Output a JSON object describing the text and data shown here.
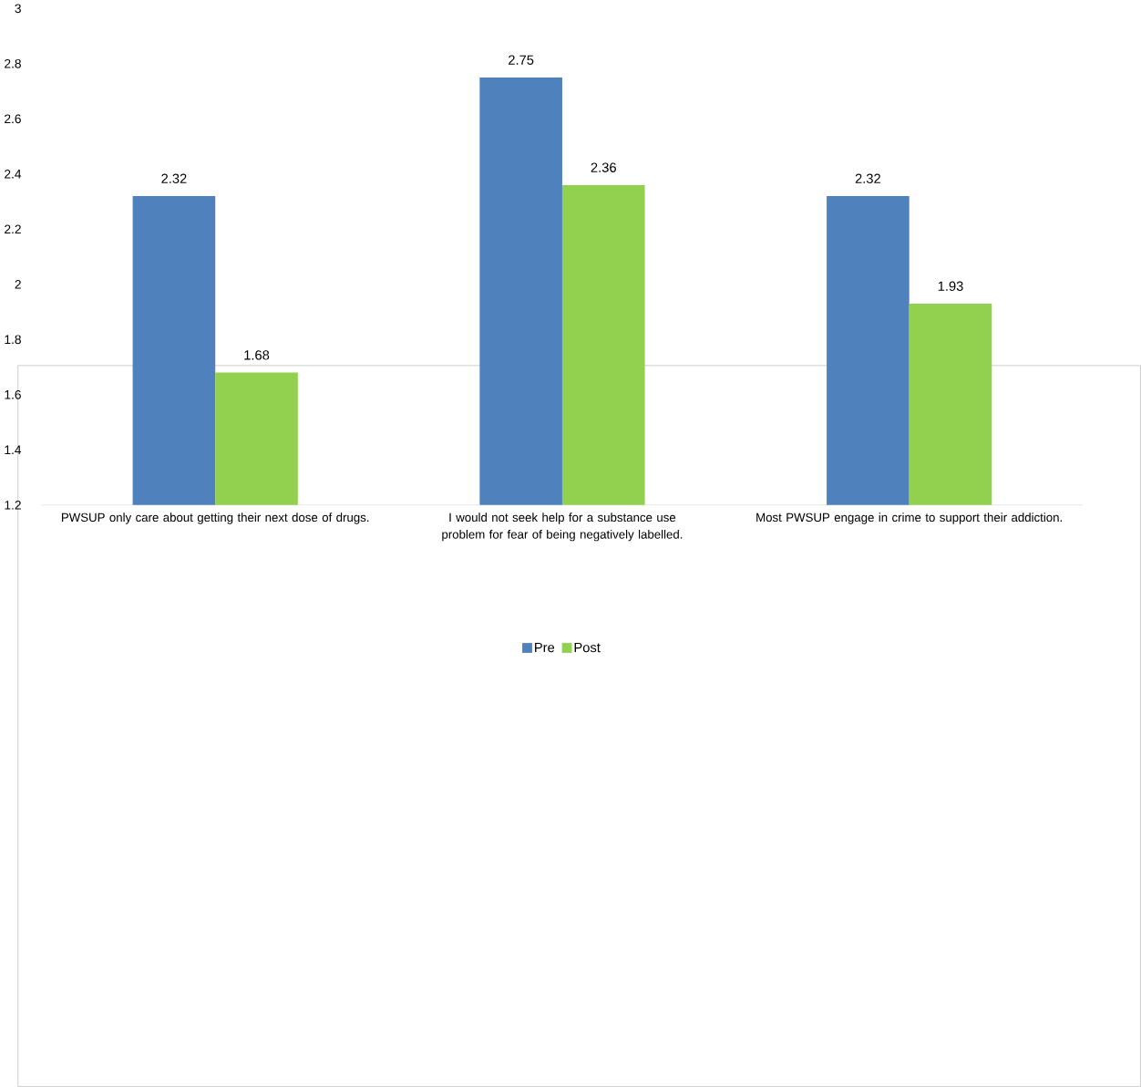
{
  "chart_data": {
    "type": "bar",
    "categories": [
      "PWSUP only care about getting their next dose of drugs.",
      "I would not seek help for a substance use problem for fear of being negatively labelled.",
      "Most PWSUP engage in crime to support their addiction."
    ],
    "series": [
      {
        "name": "Pre",
        "color": "#4f81bd",
        "values": [
          2.32,
          2.75,
          2.32
        ]
      },
      {
        "name": "Post",
        "color": "#92d050",
        "values": [
          1.68,
          2.36,
          1.93
        ]
      }
    ],
    "ylim": [
      1.2,
      3
    ],
    "yticks": [
      1.2,
      1.4,
      1.6,
      1.8,
      2,
      2.2,
      2.4,
      2.6,
      2.8,
      3
    ],
    "data_labels": true,
    "legend": "bottom",
    "grid": false
  }
}
